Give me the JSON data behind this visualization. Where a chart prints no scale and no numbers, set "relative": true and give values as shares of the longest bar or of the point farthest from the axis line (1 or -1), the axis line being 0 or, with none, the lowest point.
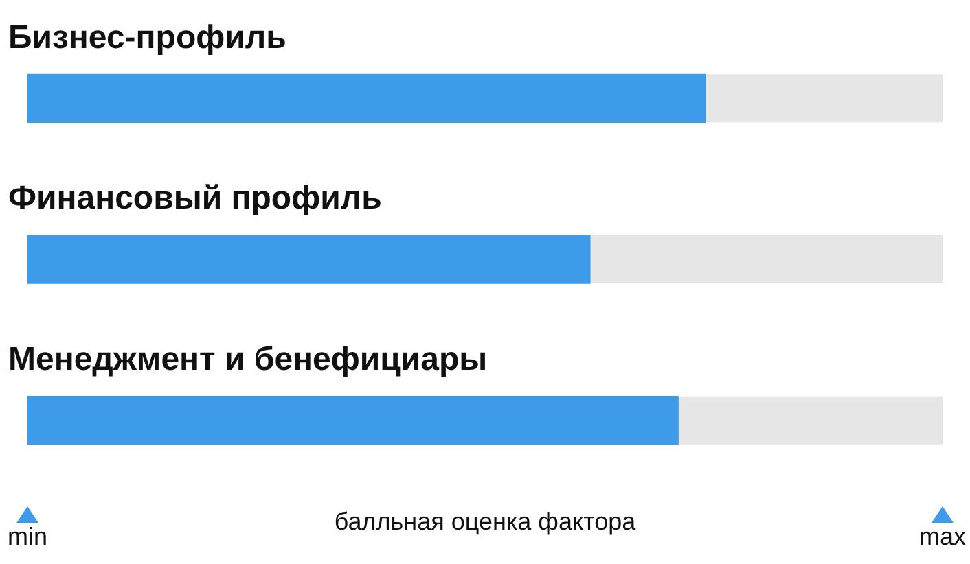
{
  "chart_data": {
    "type": "bar",
    "orientation": "horizontal",
    "categories": [
      "Бизнес-профиль",
      "Финансовый профиль",
      "Менеджмент и бенефициары"
    ],
    "values": [
      1,
      0.83,
      0.96
    ],
    "color": "#3d9be9",
    "relative": true,
    "annotations": [
      "min",
      "max"
    ],
    "xlabel": "балльная оценка фактора",
    "legend": false
  }
}
